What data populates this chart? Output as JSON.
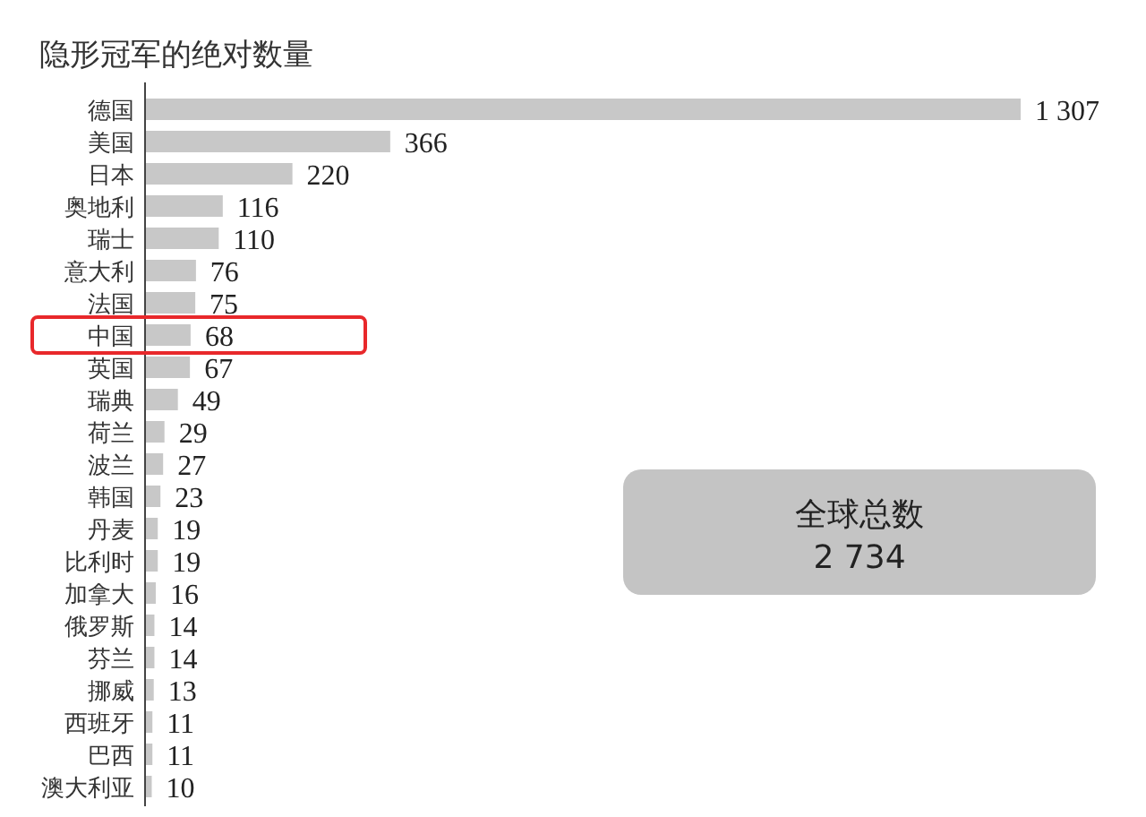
{
  "chart_data": {
    "type": "bar",
    "orientation": "horizontal",
    "title": "隐形冠军的绝对数量",
    "categories": [
      "德国",
      "美国",
      "日本",
      "奥地利",
      "瑞士",
      "意大利",
      "法国",
      "中国",
      "英国",
      "瑞典",
      "荷兰",
      "波兰",
      "韩国",
      "丹麦",
      "比利时",
      "加拿大",
      "俄罗斯",
      "芬兰",
      "挪威",
      "西班牙",
      "巴西",
      "澳大利亚"
    ],
    "values": [
      1307,
      366,
      220,
      116,
      110,
      76,
      75,
      68,
      67,
      49,
      29,
      27,
      23,
      19,
      19,
      16,
      14,
      14,
      13,
      11,
      11,
      10
    ],
    "value_labels": [
      "1 307",
      "366",
      "220",
      "116",
      "110",
      "76",
      "75",
      "68",
      "67",
      "49",
      "29",
      "27",
      "23",
      "19",
      "19",
      "16",
      "14",
      "14",
      "13",
      "11",
      "11",
      "10"
    ],
    "color": "#c8c8c8",
    "annotations": [
      "全球总数",
      "2 734"
    ]
  }
}
